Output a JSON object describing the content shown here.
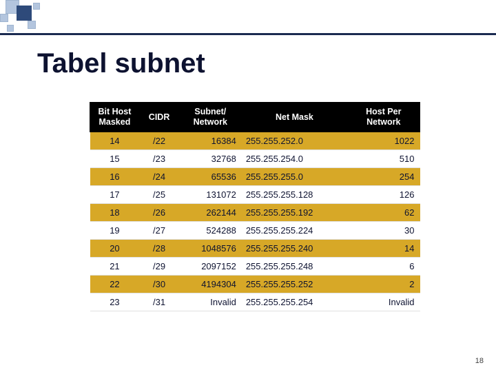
{
  "title": "Tabel subnet",
  "page_number": "18",
  "table": {
    "headers": {
      "bit_host_masked": "Bit Host\nMasked",
      "cidr": "CIDR",
      "subnet_network": "Subnet/\nNetwork",
      "net_mask": "Net Mask",
      "host_per_network": "Host Per\nNetwork"
    },
    "highlight_color": "#d7a827",
    "header_bg": "#000000",
    "header_fg": "#ffffff",
    "rows": [
      {
        "bhm": "14",
        "cidr": "/22",
        "sn": "16384",
        "mask": "255.255.252.0",
        "hpn": "1022",
        "hl": true
      },
      {
        "bhm": "15",
        "cidr": "/23",
        "sn": "32768",
        "mask": "255.255.254.0",
        "hpn": "510",
        "hl": false
      },
      {
        "bhm": "16",
        "cidr": "/24",
        "sn": "65536",
        "mask": "255.255.255.0",
        "hpn": "254",
        "hl": true
      },
      {
        "bhm": "17",
        "cidr": "/25",
        "sn": "131072",
        "mask": "255.255.255.128",
        "hpn": "126",
        "hl": false
      },
      {
        "bhm": "18",
        "cidr": "/26",
        "sn": "262144",
        "mask": "255.255.255.192",
        "hpn": "62",
        "hl": true
      },
      {
        "bhm": "19",
        "cidr": "/27",
        "sn": "524288",
        "mask": "255.255.255.224",
        "hpn": "30",
        "hl": false
      },
      {
        "bhm": "20",
        "cidr": "/28",
        "sn": "1048576",
        "mask": "255.255.255.240",
        "hpn": "14",
        "hl": true
      },
      {
        "bhm": "21",
        "cidr": "/29",
        "sn": "2097152",
        "mask": "255.255.255.248",
        "hpn": "6",
        "hl": false
      },
      {
        "bhm": "22",
        "cidr": "/30",
        "sn": "4194304",
        "mask": "255.255.255.252",
        "hpn": "2",
        "hl": true
      },
      {
        "bhm": "23",
        "cidr": "/31",
        "sn": "Invalid",
        "mask": "255.255.255.254",
        "hpn": "Invalid",
        "hl": false
      }
    ]
  }
}
